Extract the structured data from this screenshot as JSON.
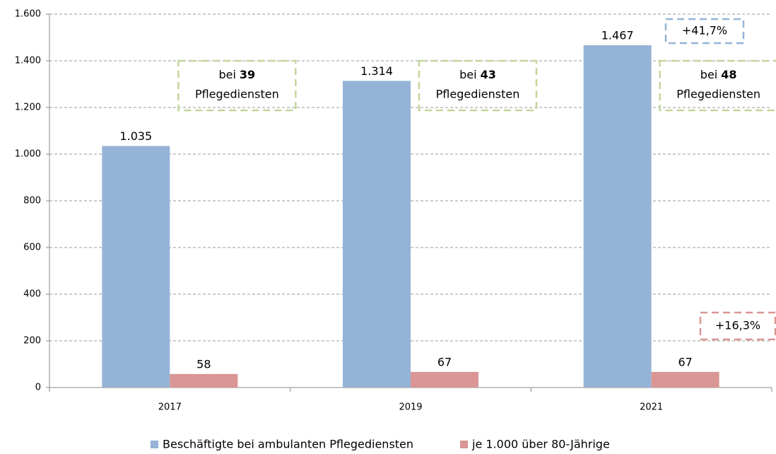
{
  "chart_data": {
    "type": "bar",
    "categories": [
      "2017",
      "2019",
      "2021"
    ],
    "series": [
      {
        "name": "Beschäftigte bei ambulanten Pflegediensten",
        "color": "#95b3d7",
        "values": [
          1035,
          1314,
          1467
        ],
        "value_labels": [
          "1.035",
          "1.314",
          "1.467"
        ]
      },
      {
        "name": "je 1.000 über 80-Jährige",
        "color": "#d99694",
        "values": [
          58,
          67,
          67
        ],
        "value_labels": [
          "58",
          "67",
          "67"
        ]
      }
    ],
    "ylim": [
      0,
      1600
    ],
    "yticks": [
      0,
      200,
      400,
      600,
      800,
      {
        "value": 1000,
        "label": "1.000"
      },
      {
        "value": 1200,
        "label": "1.200"
      },
      {
        "value": 1400,
        "label": "1.400"
      },
      {
        "value": 1600,
        "label": "1.600"
      }
    ],
    "grid": true,
    "legend": "bottom",
    "annotations": [
      {
        "prefix": "bei",
        "count": 39,
        "suffix": "Pflegediensten"
      },
      {
        "prefix": "bei",
        "count": 43,
        "suffix": "Pflegediensten"
      },
      {
        "prefix": "bei",
        "count": 48,
        "suffix": "Pflegediensten"
      }
    ],
    "change_labels": [
      "+41,7%",
      "+16,3%"
    ]
  }
}
